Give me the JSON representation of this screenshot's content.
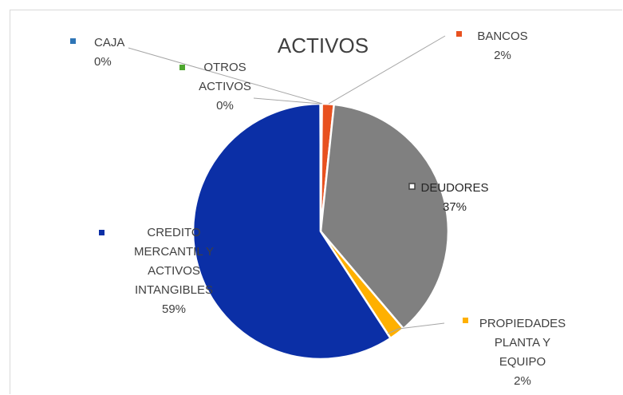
{
  "chart_data": {
    "type": "pie",
    "title": "ACTIVOS",
    "slices": [
      {
        "label": "CAJA",
        "label_lines": [
          "CAJA"
        ],
        "percent_label": "0%",
        "value": 0.1,
        "color": "#2e75b6"
      },
      {
        "label": "BANCOS",
        "label_lines": [
          "BANCOS"
        ],
        "percent_label": "2%",
        "value": 1.5,
        "color": "#e8511f"
      },
      {
        "label": "DEUDORES",
        "label_lines": [
          "DEUDORES"
        ],
        "percent_label": "37%",
        "value": 37,
        "color": "#808080"
      },
      {
        "label": "PROPIEDADES PLANTA Y EQUIPO",
        "label_lines": [
          "PROPIEDADES",
          "PLANTA Y",
          "EQUIPO"
        ],
        "percent_label": "2%",
        "value": 2,
        "color": "#ffb000"
      },
      {
        "label": "CREDITO MERCANTIL Y ACTIVOS INTANGIBLES",
        "label_lines": [
          "CREDITO",
          "MERCANTIL Y",
          "ACTIVOS",
          "INTANGIBLES"
        ],
        "percent_label": "59%",
        "value": 59,
        "color": "#0b2fa6"
      },
      {
        "label": "OTROS ACTIVOS",
        "label_lines": [
          "OTROS",
          "ACTIVOS"
        ],
        "percent_label": "0%",
        "value": 0.1,
        "color": "#4ea72e"
      }
    ],
    "legend": "none"
  }
}
